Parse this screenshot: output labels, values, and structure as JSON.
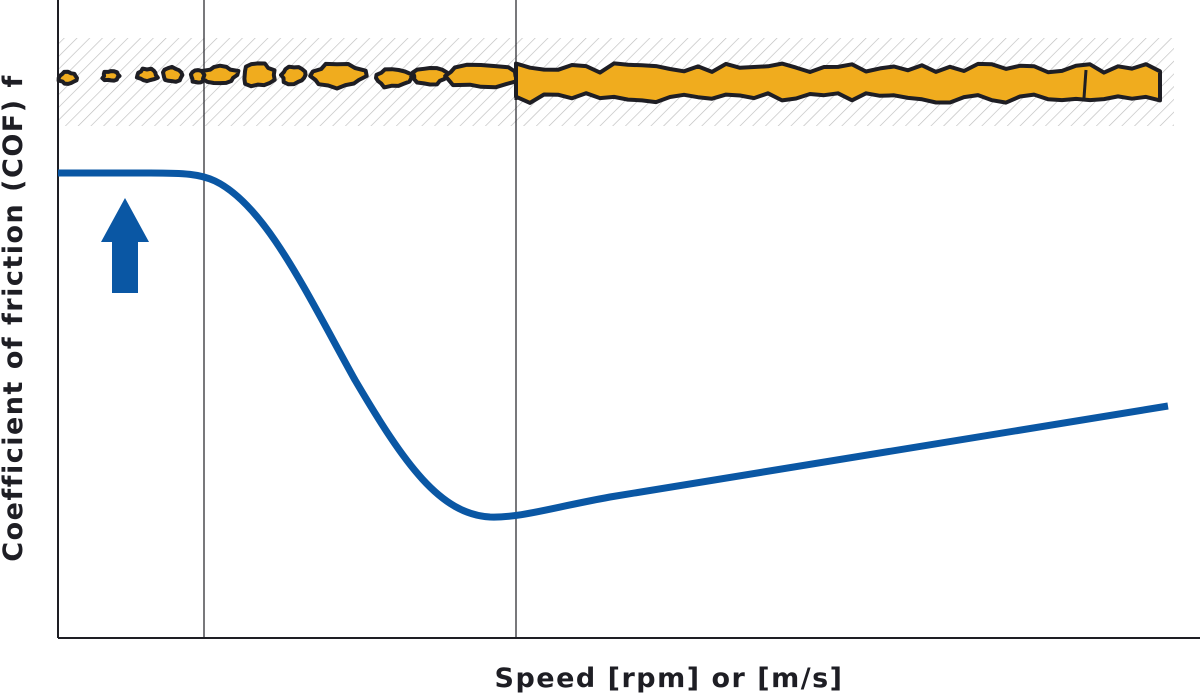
{
  "chart_data": {
    "type": "line",
    "xlabel": "Speed [rpm] or [m/s]",
    "ylabel": "Coefficient of friction (COF) f",
    "curve_color": "#0a57a4",
    "particle_color": "#f0ac1e",
    "outline_color": "#1e1e24",
    "hatch": true,
    "up_arrow": true,
    "regions": 3,
    "grid": false
  }
}
